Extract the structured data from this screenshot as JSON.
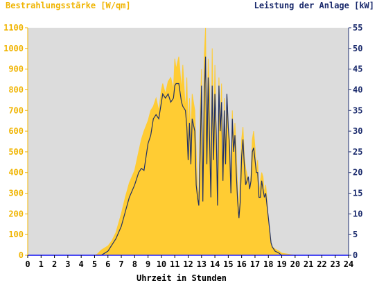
{
  "chart_data": {
    "type": "area",
    "title_left": "Bestrahlungsstärke [W/qm]",
    "title_right": "Leistung der Anlage [kW]",
    "xlabel": "Uhrzeit in Stunden",
    "x_ticks": [
      "0",
      "1",
      "2",
      "3",
      "4",
      "5",
      "6",
      "7",
      "8",
      "9",
      "10",
      "11",
      "12",
      "13",
      "14",
      "15",
      "16",
      "17",
      "18",
      "19",
      "20",
      "21",
      "22",
      "23",
      "24"
    ],
    "y_left_ticks": [
      "0",
      "100",
      "200",
      "300",
      "400",
      "500",
      "600",
      "700",
      "800",
      "900",
      "1000",
      "1100"
    ],
    "y_right_ticks": [
      "0",
      "5",
      "10",
      "15",
      "20",
      "25",
      "30",
      "35",
      "40",
      "45",
      "50",
      "55"
    ],
    "xlim": [
      0,
      24
    ],
    "ylim_left": [
      0,
      1100
    ],
    "ylim_right": [
      0,
      55
    ],
    "grid": false,
    "colors": {
      "plot_bg": "#dcdcdc",
      "irradiance": "#ffcc33",
      "power": "#1f2f66",
      "left_axis": "#f0b400",
      "right_axis": "#1a2a6c",
      "baseline": "#2020ff"
    },
    "series": [
      {
        "name": "Bestrahlungsstärke [W/qm]",
        "axis": "left",
        "x": [
          0,
          5,
          5.2,
          5.5,
          6,
          6.3,
          6.6,
          7,
          7.3,
          7.6,
          8,
          8.3,
          8.5,
          8.7,
          9,
          9.2,
          9.4,
          9.6,
          9.8,
          10,
          10.1,
          10.3,
          10.5,
          10.7,
          10.9,
          11,
          11.1,
          11.3,
          11.5,
          11.6,
          11.8,
          11.9,
          12.0,
          12.1,
          12.2,
          12.3,
          12.5,
          12.6,
          12.7,
          12.8,
          12.9,
          13.0,
          13.1,
          13.2,
          13.3,
          13.4,
          13.5,
          13.6,
          13.7,
          13.8,
          13.9,
          14.0,
          14.1,
          14.2,
          14.3,
          14.4,
          14.5,
          14.6,
          14.7,
          14.8,
          14.9,
          15.0,
          15.1,
          15.2,
          15.3,
          15.4,
          15.5,
          15.6,
          15.7,
          15.8,
          15.9,
          16.0,
          16.1,
          16.2,
          16.3,
          16.5,
          16.6,
          16.7,
          16.8,
          16.9,
          17.0,
          17.1,
          17.2,
          17.3,
          17.4,
          17.5,
          17.6,
          17.7,
          17.8,
          17.9,
          18.0,
          18.2,
          18.3,
          18.5,
          18.8,
          19.0,
          19.5,
          20.0,
          24
        ],
        "values": [
          0,
          0,
          5,
          25,
          45,
          70,
          110,
          200,
          280,
          350,
          410,
          500,
          560,
          600,
          650,
          700,
          720,
          760,
          700,
          800,
          830,
          780,
          840,
          860,
          800,
          950,
          900,
          960,
          800,
          920,
          700,
          860,
          600,
          760,
          560,
          780,
          700,
          500,
          330,
          280,
          700,
          900,
          240,
          950,
          1100,
          500,
          950,
          800,
          300,
          1000,
          500,
          920,
          600,
          250,
          860,
          600,
          830,
          350,
          760,
          480,
          780,
          620,
          560,
          300,
          700,
          540,
          640,
          500,
          320,
          220,
          400,
          560,
          620,
          480,
          420,
          360,
          300,
          400,
          560,
          600,
          520,
          400,
          460,
          300,
          360,
          400,
          380,
          300,
          340,
          270,
          160,
          60,
          40,
          30,
          20,
          10,
          5,
          0,
          0
        ]
      },
      {
        "name": "Leistung der Anlage [kW]",
        "axis": "right",
        "x": [
          0,
          5,
          5.2,
          5.5,
          6,
          6.3,
          6.6,
          7,
          7.3,
          7.6,
          8,
          8.3,
          8.5,
          8.7,
          9,
          9.2,
          9.4,
          9.6,
          9.8,
          10,
          10.1,
          10.3,
          10.5,
          10.7,
          10.9,
          11,
          11.1,
          11.3,
          11.5,
          11.6,
          11.8,
          11.9,
          12.0,
          12.1,
          12.2,
          12.3,
          12.5,
          12.6,
          12.7,
          12.8,
          12.9,
          13.0,
          13.1,
          13.2,
          13.3,
          13.4,
          13.5,
          13.6,
          13.7,
          13.8,
          13.9,
          14.0,
          14.1,
          14.2,
          14.3,
          14.4,
          14.5,
          14.6,
          14.7,
          14.8,
          14.9,
          15.0,
          15.1,
          15.2,
          15.3,
          15.4,
          15.5,
          15.6,
          15.7,
          15.8,
          15.9,
          16.0,
          16.1,
          16.2,
          16.3,
          16.5,
          16.6,
          16.7,
          16.8,
          16.9,
          17.0,
          17.1,
          17.2,
          17.3,
          17.4,
          17.5,
          17.6,
          17.7,
          17.8,
          17.9,
          18.0,
          18.2,
          18.3,
          18.5,
          18.8,
          19.0,
          19.5,
          20.0,
          24
        ],
        "values": [
          0,
          0,
          0,
          0,
          1,
          2.5,
          4,
          7,
          10.5,
          14,
          17,
          20,
          21,
          20.5,
          27,
          29,
          33,
          34,
          33,
          37,
          39,
          38,
          39,
          37,
          38,
          41,
          41.5,
          41.5,
          37,
          36,
          35,
          31,
          23,
          32,
          22,
          33,
          30,
          17,
          14,
          12,
          25,
          41,
          13,
          37,
          48,
          22,
          43,
          28,
          14,
          41,
          23,
          39,
          30,
          12,
          41,
          30,
          37,
          18,
          35,
          22,
          39,
          31,
          26,
          15,
          33,
          25,
          29,
          20,
          13,
          9,
          13,
          24,
          28,
          22,
          17,
          19,
          16,
          18,
          25,
          26,
          23,
          20,
          20,
          14,
          14,
          18,
          16,
          14,
          15,
          12,
          9,
          3,
          2,
          1,
          0.5,
          0,
          0,
          0,
          0
        ]
      }
    ]
  }
}
